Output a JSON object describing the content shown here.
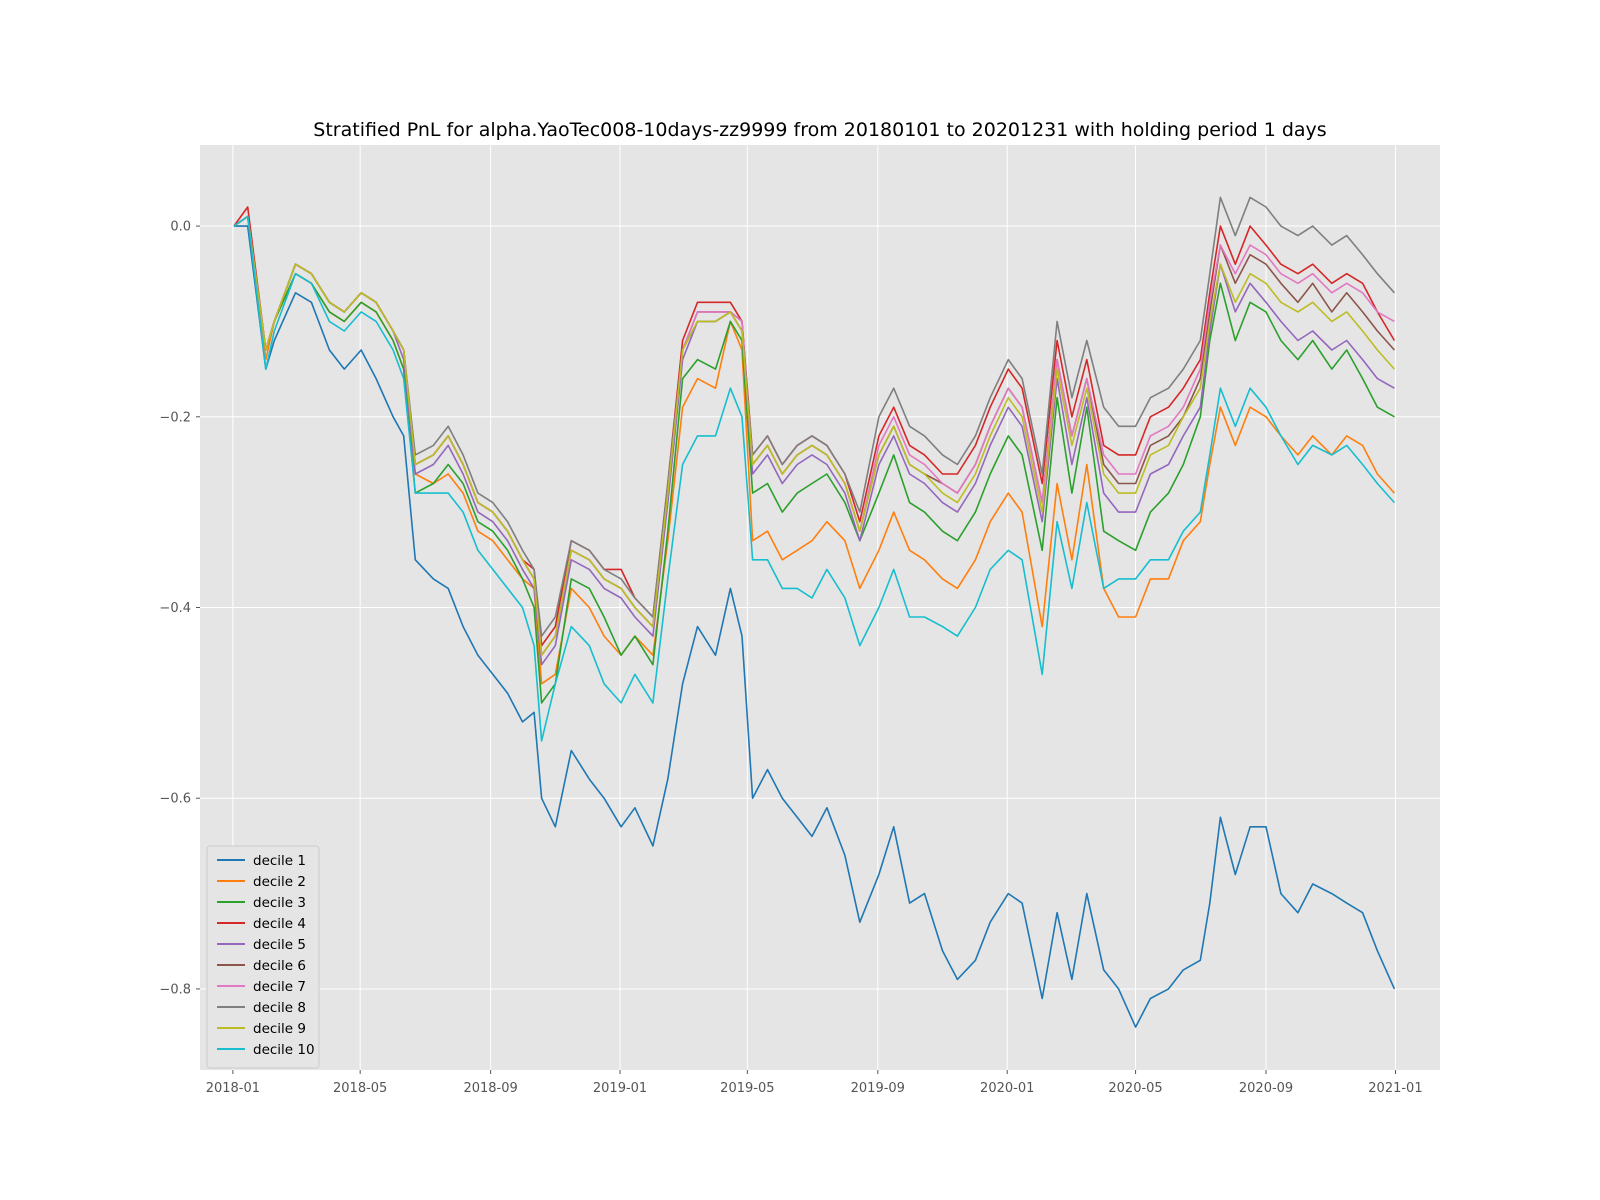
{
  "chart_data": {
    "type": "line",
    "title": "Stratified PnL for alpha.YaoTec008-10days-zz9999 from 20180101 to 20201231 with holding period 1 days",
    "xlabel": "",
    "ylabel": "",
    "xlim": [
      "2017-12-01",
      "2021-02-12"
    ],
    "ylim": [
      -0.885,
      0.085
    ],
    "x_ticks": [
      "2018-01",
      "2018-05",
      "2018-09",
      "2019-01",
      "2019-05",
      "2019-09",
      "2020-01",
      "2020-05",
      "2020-09",
      "2021-01"
    ],
    "y_ticks": [
      {
        "value": 0.0,
        "label": "0.0"
      },
      {
        "value": -0.2,
        "label": "−0.2"
      },
      {
        "value": -0.4,
        "label": "−0.4"
      },
      {
        "value": -0.6,
        "label": "−0.6"
      },
      {
        "value": -0.8,
        "label": "−0.8"
      }
    ],
    "grid": true,
    "style": "ggplot",
    "legend_position": "lower-left",
    "x": [
      "2018-01-02",
      "2018-01-15",
      "2018-02-01",
      "2018-02-09",
      "2018-03-01",
      "2018-03-16",
      "2018-04-02",
      "2018-04-16",
      "2018-05-02",
      "2018-05-16",
      "2018-06-01",
      "2018-06-11",
      "2018-06-22",
      "2018-07-09",
      "2018-07-23",
      "2018-08-06",
      "2018-08-20",
      "2018-09-03",
      "2018-09-17",
      "2018-10-01",
      "2018-10-12",
      "2018-10-19",
      "2018-11-01",
      "2018-11-16",
      "2018-12-03",
      "2018-12-17",
      "2019-01-02",
      "2019-01-15",
      "2019-02-01",
      "2019-02-15",
      "2019-03-01",
      "2019-03-15",
      "2019-04-01",
      "2019-04-15",
      "2019-04-26",
      "2019-05-06",
      "2019-05-20",
      "2019-06-03",
      "2019-06-17",
      "2019-07-01",
      "2019-07-15",
      "2019-08-01",
      "2019-08-15",
      "2019-09-02",
      "2019-09-16",
      "2019-10-01",
      "2019-10-15",
      "2019-11-01",
      "2019-11-15",
      "2019-12-02",
      "2019-12-16",
      "2020-01-02",
      "2020-01-15",
      "2020-02-03",
      "2020-02-17",
      "2020-03-02",
      "2020-03-16",
      "2020-04-01",
      "2020-04-15",
      "2020-05-01",
      "2020-05-15",
      "2020-06-01",
      "2020-06-15",
      "2020-07-01",
      "2020-07-10",
      "2020-07-20",
      "2020-08-03",
      "2020-08-17",
      "2020-09-01",
      "2020-09-15",
      "2020-10-01",
      "2020-10-15",
      "2020-11-02",
      "2020-11-16",
      "2020-12-01",
      "2020-12-15",
      "2020-12-31"
    ],
    "series": [
      {
        "name": "decile 1",
        "color": "#1f77b4",
        "values": [
          0.0,
          0.0,
          -0.15,
          -0.12,
          -0.07,
          -0.08,
          -0.13,
          -0.15,
          -0.13,
          -0.16,
          -0.2,
          -0.22,
          -0.35,
          -0.37,
          -0.38,
          -0.42,
          -0.45,
          -0.47,
          -0.49,
          -0.52,
          -0.51,
          -0.6,
          -0.63,
          -0.55,
          -0.58,
          -0.6,
          -0.63,
          -0.61,
          -0.65,
          -0.58,
          -0.48,
          -0.42,
          -0.45,
          -0.38,
          -0.43,
          -0.6,
          -0.57,
          -0.6,
          -0.62,
          -0.64,
          -0.61,
          -0.66,
          -0.73,
          -0.68,
          -0.63,
          -0.71,
          -0.7,
          -0.76,
          -0.79,
          -0.77,
          -0.73,
          -0.7,
          -0.71,
          -0.81,
          -0.72,
          -0.79,
          -0.7,
          -0.78,
          -0.8,
          -0.84,
          -0.81,
          -0.8,
          -0.78,
          -0.77,
          -0.71,
          -0.62,
          -0.68,
          -0.63,
          -0.63,
          -0.7,
          -0.72,
          -0.69,
          -0.7,
          -0.71,
          -0.72,
          -0.76,
          -0.8
        ]
      },
      {
        "name": "decile 2",
        "color": "#ff7f0e",
        "values": [
          0.0,
          0.01,
          -0.14,
          -0.1,
          -0.05,
          -0.06,
          -0.09,
          -0.1,
          -0.08,
          -0.09,
          -0.12,
          -0.15,
          -0.26,
          -0.27,
          -0.26,
          -0.28,
          -0.32,
          -0.33,
          -0.35,
          -0.37,
          -0.38,
          -0.48,
          -0.47,
          -0.38,
          -0.4,
          -0.43,
          -0.45,
          -0.43,
          -0.45,
          -0.33,
          -0.19,
          -0.16,
          -0.17,
          -0.1,
          -0.13,
          -0.33,
          -0.32,
          -0.35,
          -0.34,
          -0.33,
          -0.31,
          -0.33,
          -0.38,
          -0.34,
          -0.3,
          -0.34,
          -0.35,
          -0.37,
          -0.38,
          -0.35,
          -0.31,
          -0.28,
          -0.3,
          -0.42,
          -0.27,
          -0.35,
          -0.25,
          -0.38,
          -0.41,
          -0.41,
          -0.37,
          -0.37,
          -0.33,
          -0.31,
          -0.25,
          -0.19,
          -0.23,
          -0.19,
          -0.2,
          -0.22,
          -0.24,
          -0.22,
          -0.24,
          -0.22,
          -0.23,
          -0.26,
          -0.28
        ]
      },
      {
        "name": "decile 3",
        "color": "#2ca02c",
        "values": [
          0.0,
          0.01,
          -0.13,
          -0.1,
          -0.05,
          -0.06,
          -0.09,
          -0.1,
          -0.08,
          -0.09,
          -0.12,
          -0.15,
          -0.28,
          -0.27,
          -0.25,
          -0.27,
          -0.31,
          -0.32,
          -0.34,
          -0.37,
          -0.4,
          -0.5,
          -0.48,
          -0.37,
          -0.38,
          -0.41,
          -0.45,
          -0.43,
          -0.46,
          -0.32,
          -0.16,
          -0.14,
          -0.15,
          -0.1,
          -0.12,
          -0.28,
          -0.27,
          -0.3,
          -0.28,
          -0.27,
          -0.26,
          -0.29,
          -0.33,
          -0.28,
          -0.24,
          -0.29,
          -0.3,
          -0.32,
          -0.33,
          -0.3,
          -0.26,
          -0.22,
          -0.24,
          -0.34,
          -0.18,
          -0.28,
          -0.19,
          -0.32,
          -0.33,
          -0.34,
          -0.3,
          -0.28,
          -0.25,
          -0.2,
          -0.12,
          -0.06,
          -0.12,
          -0.08,
          -0.09,
          -0.12,
          -0.14,
          -0.12,
          -0.15,
          -0.13,
          -0.16,
          -0.19,
          -0.2
        ]
      },
      {
        "name": "decile 4",
        "color": "#d62728",
        "values": [
          0.0,
          0.02,
          -0.13,
          -0.1,
          -0.04,
          -0.05,
          -0.08,
          -0.09,
          -0.07,
          -0.08,
          -0.11,
          -0.13,
          -0.25,
          -0.24,
          -0.22,
          -0.25,
          -0.29,
          -0.3,
          -0.32,
          -0.35,
          -0.36,
          -0.44,
          -0.42,
          -0.33,
          -0.34,
          -0.36,
          -0.36,
          -0.39,
          -0.41,
          -0.27,
          -0.12,
          -0.08,
          -0.08,
          -0.08,
          -0.1,
          -0.24,
          -0.22,
          -0.25,
          -0.23,
          -0.22,
          -0.23,
          -0.26,
          -0.31,
          -0.22,
          -0.19,
          -0.23,
          -0.24,
          -0.26,
          -0.26,
          -0.23,
          -0.19,
          -0.15,
          -0.17,
          -0.27,
          -0.12,
          -0.2,
          -0.14,
          -0.23,
          -0.24,
          -0.24,
          -0.2,
          -0.19,
          -0.17,
          -0.14,
          -0.07,
          0.0,
          -0.04,
          0.0,
          -0.02,
          -0.04,
          -0.05,
          -0.04,
          -0.06,
          -0.05,
          -0.06,
          -0.09,
          -0.12
        ]
      },
      {
        "name": "decile 5",
        "color": "#9467bd",
        "values": [
          0.0,
          0.01,
          -0.13,
          -0.1,
          -0.04,
          -0.05,
          -0.08,
          -0.09,
          -0.07,
          -0.08,
          -0.11,
          -0.14,
          -0.26,
          -0.25,
          -0.23,
          -0.26,
          -0.3,
          -0.31,
          -0.33,
          -0.36,
          -0.38,
          -0.46,
          -0.44,
          -0.35,
          -0.36,
          -0.38,
          -0.39,
          -0.41,
          -0.43,
          -0.29,
          -0.14,
          -0.1,
          -0.1,
          -0.09,
          -0.11,
          -0.26,
          -0.24,
          -0.27,
          -0.25,
          -0.24,
          -0.25,
          -0.28,
          -0.33,
          -0.25,
          -0.22,
          -0.26,
          -0.27,
          -0.29,
          -0.3,
          -0.27,
          -0.23,
          -0.19,
          -0.21,
          -0.31,
          -0.16,
          -0.25,
          -0.18,
          -0.28,
          -0.3,
          -0.3,
          -0.26,
          -0.25,
          -0.22,
          -0.19,
          -0.11,
          -0.04,
          -0.09,
          -0.06,
          -0.08,
          -0.1,
          -0.12,
          -0.11,
          -0.13,
          -0.12,
          -0.14,
          -0.16,
          -0.17
        ]
      },
      {
        "name": "decile 6",
        "color": "#8c564b",
        "values": [
          0.0,
          0.01,
          -0.13,
          -0.1,
          -0.04,
          -0.05,
          -0.08,
          -0.09,
          -0.07,
          -0.08,
          -0.11,
          -0.13,
          -0.25,
          -0.24,
          -0.22,
          -0.25,
          -0.29,
          -0.3,
          -0.32,
          -0.35,
          -0.37,
          -0.45,
          -0.43,
          -0.34,
          -0.35,
          -0.37,
          -0.38,
          -0.4,
          -0.42,
          -0.28,
          -0.13,
          -0.09,
          -0.09,
          -0.09,
          -0.1,
          -0.25,
          -0.23,
          -0.26,
          -0.24,
          -0.23,
          -0.24,
          -0.27,
          -0.32,
          -0.24,
          -0.21,
          -0.25,
          -0.26,
          -0.27,
          -0.28,
          -0.25,
          -0.21,
          -0.17,
          -0.19,
          -0.29,
          -0.14,
          -0.22,
          -0.16,
          -0.25,
          -0.27,
          -0.27,
          -0.23,
          -0.22,
          -0.2,
          -0.16,
          -0.09,
          -0.02,
          -0.06,
          -0.03,
          -0.04,
          -0.06,
          -0.08,
          -0.06,
          -0.09,
          -0.07,
          -0.09,
          -0.11,
          -0.13
        ]
      },
      {
        "name": "decile 7",
        "color": "#e377c2",
        "values": [
          0.0,
          0.01,
          -0.13,
          -0.1,
          -0.04,
          -0.05,
          -0.08,
          -0.09,
          -0.07,
          -0.08,
          -0.11,
          -0.13,
          -0.25,
          -0.24,
          -0.22,
          -0.25,
          -0.29,
          -0.3,
          -0.32,
          -0.35,
          -0.37,
          -0.45,
          -0.43,
          -0.34,
          -0.35,
          -0.37,
          -0.38,
          -0.4,
          -0.42,
          -0.28,
          -0.13,
          -0.09,
          -0.09,
          -0.09,
          -0.1,
          -0.25,
          -0.23,
          -0.26,
          -0.24,
          -0.23,
          -0.24,
          -0.27,
          -0.32,
          -0.23,
          -0.2,
          -0.24,
          -0.25,
          -0.27,
          -0.28,
          -0.25,
          -0.21,
          -0.17,
          -0.19,
          -0.29,
          -0.14,
          -0.22,
          -0.16,
          -0.24,
          -0.26,
          -0.26,
          -0.22,
          -0.21,
          -0.19,
          -0.15,
          -0.08,
          -0.02,
          -0.05,
          -0.02,
          -0.03,
          -0.05,
          -0.06,
          -0.05,
          -0.07,
          -0.06,
          -0.07,
          -0.09,
          -0.1
        ]
      },
      {
        "name": "decile 8",
        "color": "#7f7f7f",
        "values": [
          0.0,
          0.01,
          -0.13,
          -0.1,
          -0.04,
          -0.05,
          -0.08,
          -0.09,
          -0.07,
          -0.08,
          -0.11,
          -0.13,
          -0.24,
          -0.23,
          -0.21,
          -0.24,
          -0.28,
          -0.29,
          -0.31,
          -0.34,
          -0.36,
          -0.43,
          -0.41,
          -0.33,
          -0.34,
          -0.36,
          -0.37,
          -0.39,
          -0.41,
          -0.27,
          -0.13,
          -0.1,
          -0.1,
          -0.09,
          -0.11,
          -0.24,
          -0.22,
          -0.25,
          -0.23,
          -0.22,
          -0.23,
          -0.26,
          -0.3,
          -0.2,
          -0.17,
          -0.21,
          -0.22,
          -0.24,
          -0.25,
          -0.22,
          -0.18,
          -0.14,
          -0.16,
          -0.26,
          -0.1,
          -0.18,
          -0.12,
          -0.19,
          -0.21,
          -0.21,
          -0.18,
          -0.17,
          -0.15,
          -0.12,
          -0.05,
          0.03,
          -0.01,
          0.03,
          0.02,
          0.0,
          -0.01,
          0.0,
          -0.02,
          -0.01,
          -0.03,
          -0.05,
          -0.07
        ]
      },
      {
        "name": "decile 9",
        "color": "#bcbd22",
        "values": [
          0.0,
          0.01,
          -0.13,
          -0.1,
          -0.04,
          -0.05,
          -0.08,
          -0.09,
          -0.07,
          -0.08,
          -0.11,
          -0.13,
          -0.25,
          -0.24,
          -0.22,
          -0.25,
          -0.29,
          -0.3,
          -0.32,
          -0.35,
          -0.37,
          -0.45,
          -0.43,
          -0.34,
          -0.35,
          -0.37,
          -0.38,
          -0.4,
          -0.42,
          -0.28,
          -0.13,
          -0.1,
          -0.1,
          -0.09,
          -0.11,
          -0.25,
          -0.23,
          -0.26,
          -0.24,
          -0.23,
          -0.24,
          -0.27,
          -0.32,
          -0.24,
          -0.21,
          -0.25,
          -0.26,
          -0.28,
          -0.29,
          -0.26,
          -0.22,
          -0.18,
          -0.2,
          -0.3,
          -0.15,
          -0.23,
          -0.17,
          -0.26,
          -0.28,
          -0.28,
          -0.24,
          -0.23,
          -0.2,
          -0.17,
          -0.1,
          -0.04,
          -0.08,
          -0.05,
          -0.06,
          -0.08,
          -0.09,
          -0.08,
          -0.1,
          -0.09,
          -0.11,
          -0.13,
          -0.15
        ]
      },
      {
        "name": "decile 10",
        "color": "#17becf",
        "values": [
          0.0,
          0.01,
          -0.15,
          -0.11,
          -0.05,
          -0.06,
          -0.1,
          -0.11,
          -0.09,
          -0.1,
          -0.13,
          -0.16,
          -0.28,
          -0.28,
          -0.28,
          -0.3,
          -0.34,
          -0.36,
          -0.38,
          -0.4,
          -0.44,
          -0.54,
          -0.48,
          -0.42,
          -0.44,
          -0.48,
          -0.5,
          -0.47,
          -0.5,
          -0.37,
          -0.25,
          -0.22,
          -0.22,
          -0.17,
          -0.2,
          -0.35,
          -0.35,
          -0.38,
          -0.38,
          -0.39,
          -0.36,
          -0.39,
          -0.44,
          -0.4,
          -0.36,
          -0.41,
          -0.41,
          -0.42,
          -0.43,
          -0.4,
          -0.36,
          -0.34,
          -0.35,
          -0.47,
          -0.31,
          -0.38,
          -0.29,
          -0.38,
          -0.37,
          -0.37,
          -0.35,
          -0.35,
          -0.32,
          -0.3,
          -0.24,
          -0.17,
          -0.21,
          -0.17,
          -0.19,
          -0.22,
          -0.25,
          -0.23,
          -0.24,
          -0.23,
          -0.25,
          -0.27,
          -0.29
        ]
      }
    ]
  }
}
